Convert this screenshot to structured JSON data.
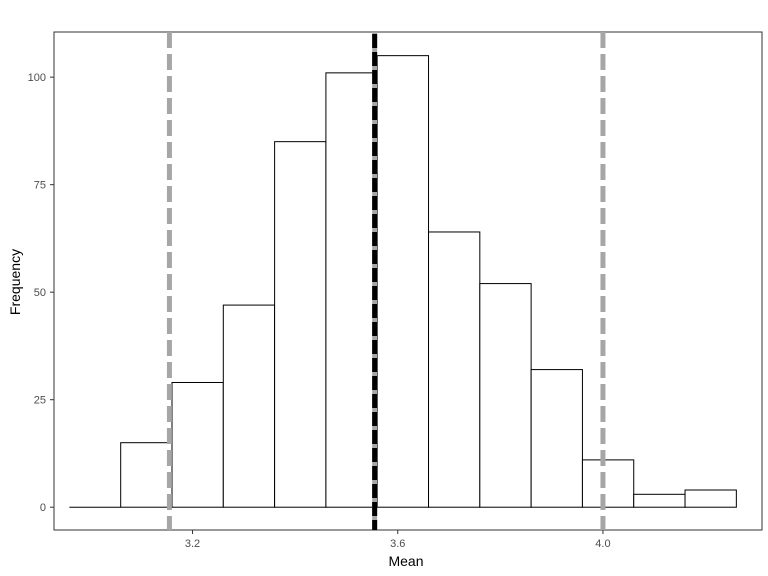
{
  "chart_data": {
    "type": "histogram",
    "xlabel": "Mean",
    "ylabel": "Frequency",
    "xlim": [
      2.93,
      4.31
    ],
    "ylim": [
      -5.3,
      110.5
    ],
    "bin_width": 0.1,
    "bins": [
      {
        "x0": 2.96,
        "x1": 3.06,
        "count": 0
      },
      {
        "x0": 3.06,
        "x1": 3.16,
        "count": 15
      },
      {
        "x0": 3.16,
        "x1": 3.26,
        "count": 29
      },
      {
        "x0": 3.26,
        "x1": 3.36,
        "count": 47
      },
      {
        "x0": 3.36,
        "x1": 3.46,
        "count": 85
      },
      {
        "x0": 3.46,
        "x1": 3.56,
        "count": 101
      },
      {
        "x0": 3.56,
        "x1": 3.66,
        "count": 105
      },
      {
        "x0": 3.66,
        "x1": 3.76,
        "count": 64
      },
      {
        "x0": 3.76,
        "x1": 3.86,
        "count": 52
      },
      {
        "x0": 3.86,
        "x1": 3.96,
        "count": 32
      },
      {
        "x0": 3.96,
        "x1": 4.06,
        "count": 11
      },
      {
        "x0": 4.06,
        "x1": 4.16,
        "count": 3
      },
      {
        "x0": 4.16,
        "x1": 4.26,
        "count": 4
      }
    ],
    "x_ticks": [
      {
        "value": 3.2,
        "label": "3.2"
      },
      {
        "value": 3.6,
        "label": "3.6"
      },
      {
        "value": 4.0,
        "label": "4.0"
      }
    ],
    "y_ticks": [
      {
        "value": 0,
        "label": "0"
      },
      {
        "value": 25,
        "label": "25"
      },
      {
        "value": 50,
        "label": "50"
      },
      {
        "value": 75,
        "label": "75"
      },
      {
        "value": 100,
        "label": "100"
      }
    ],
    "vlines": [
      {
        "x": 3.155,
        "style": "dashed",
        "color": "#a6a6a6"
      },
      {
        "x": 3.555,
        "style": "dashed",
        "color": "#000000",
        "under_color": "#a6a6a6"
      },
      {
        "x": 4.0,
        "style": "dashed",
        "color": "#a6a6a6"
      }
    ],
    "bar_fill": "#ffffff",
    "bar_stroke": "#000000",
    "grid": false,
    "legend": "none"
  }
}
